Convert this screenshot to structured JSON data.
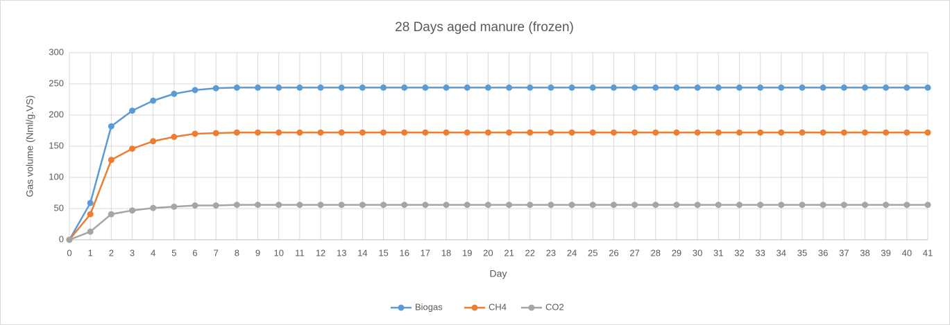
{
  "chart_data": {
    "type": "line",
    "title": "28 Days aged manure (frozen)",
    "x_label": "Day",
    "y_label": "Gas  volume (Nml/g.VS)",
    "x": [
      0,
      1,
      2,
      3,
      4,
      5,
      6,
      7,
      8,
      9,
      10,
      11,
      12,
      13,
      14,
      15,
      16,
      17,
      18,
      19,
      20,
      21,
      22,
      23,
      24,
      25,
      26,
      27,
      28,
      29,
      30,
      31,
      32,
      33,
      34,
      35,
      36,
      37,
      38,
      39,
      40,
      41
    ],
    "xlim": [
      0,
      41
    ],
    "xticks": [
      0,
      1,
      2,
      3,
      4,
      5,
      6,
      7,
      8,
      9,
      10,
      11,
      12,
      13,
      14,
      15,
      16,
      17,
      18,
      19,
      20,
      21,
      22,
      23,
      24,
      25,
      26,
      27,
      28,
      29,
      30,
      31,
      32,
      33,
      34,
      35,
      36,
      37,
      38,
      39,
      40,
      41
    ],
    "ylim": [
      0,
      300
    ],
    "yticks": [
      0,
      50,
      100,
      150,
      200,
      250,
      300
    ],
    "grid": true,
    "legend": "bottom",
    "series": [
      {
        "name": "Biogas",
        "color": "#5b9bd5",
        "values": [
          0,
          59,
          182,
          207,
          223,
          234,
          240,
          243,
          244,
          244,
          244,
          244,
          244,
          244,
          244,
          244,
          244,
          244,
          244,
          244,
          244,
          244,
          244,
          244,
          244,
          244,
          244,
          244,
          244,
          244,
          244,
          244,
          244,
          244,
          244,
          244,
          244,
          244,
          244,
          244,
          244,
          244
        ]
      },
      {
        "name": "CH4",
        "color": "#ed7d31",
        "values": [
          0,
          41,
          128,
          146,
          158,
          165,
          170,
          171,
          172,
          172,
          172,
          172,
          172,
          172,
          172,
          172,
          172,
          172,
          172,
          172,
          172,
          172,
          172,
          172,
          172,
          172,
          172,
          172,
          172,
          172,
          172,
          172,
          172,
          172,
          172,
          172,
          172,
          172,
          172,
          172,
          172,
          172
        ]
      },
      {
        "name": "CO2",
        "color": "#a5a5a5",
        "values": [
          0,
          13,
          41,
          47,
          51,
          53,
          55,
          55,
          56,
          56,
          56,
          56,
          56,
          56,
          56,
          56,
          56,
          56,
          56,
          56,
          56,
          56,
          56,
          56,
          56,
          56,
          56,
          56,
          56,
          56,
          56,
          56,
          56,
          56,
          56,
          56,
          56,
          56,
          56,
          56,
          56,
          56
        ]
      }
    ]
  }
}
